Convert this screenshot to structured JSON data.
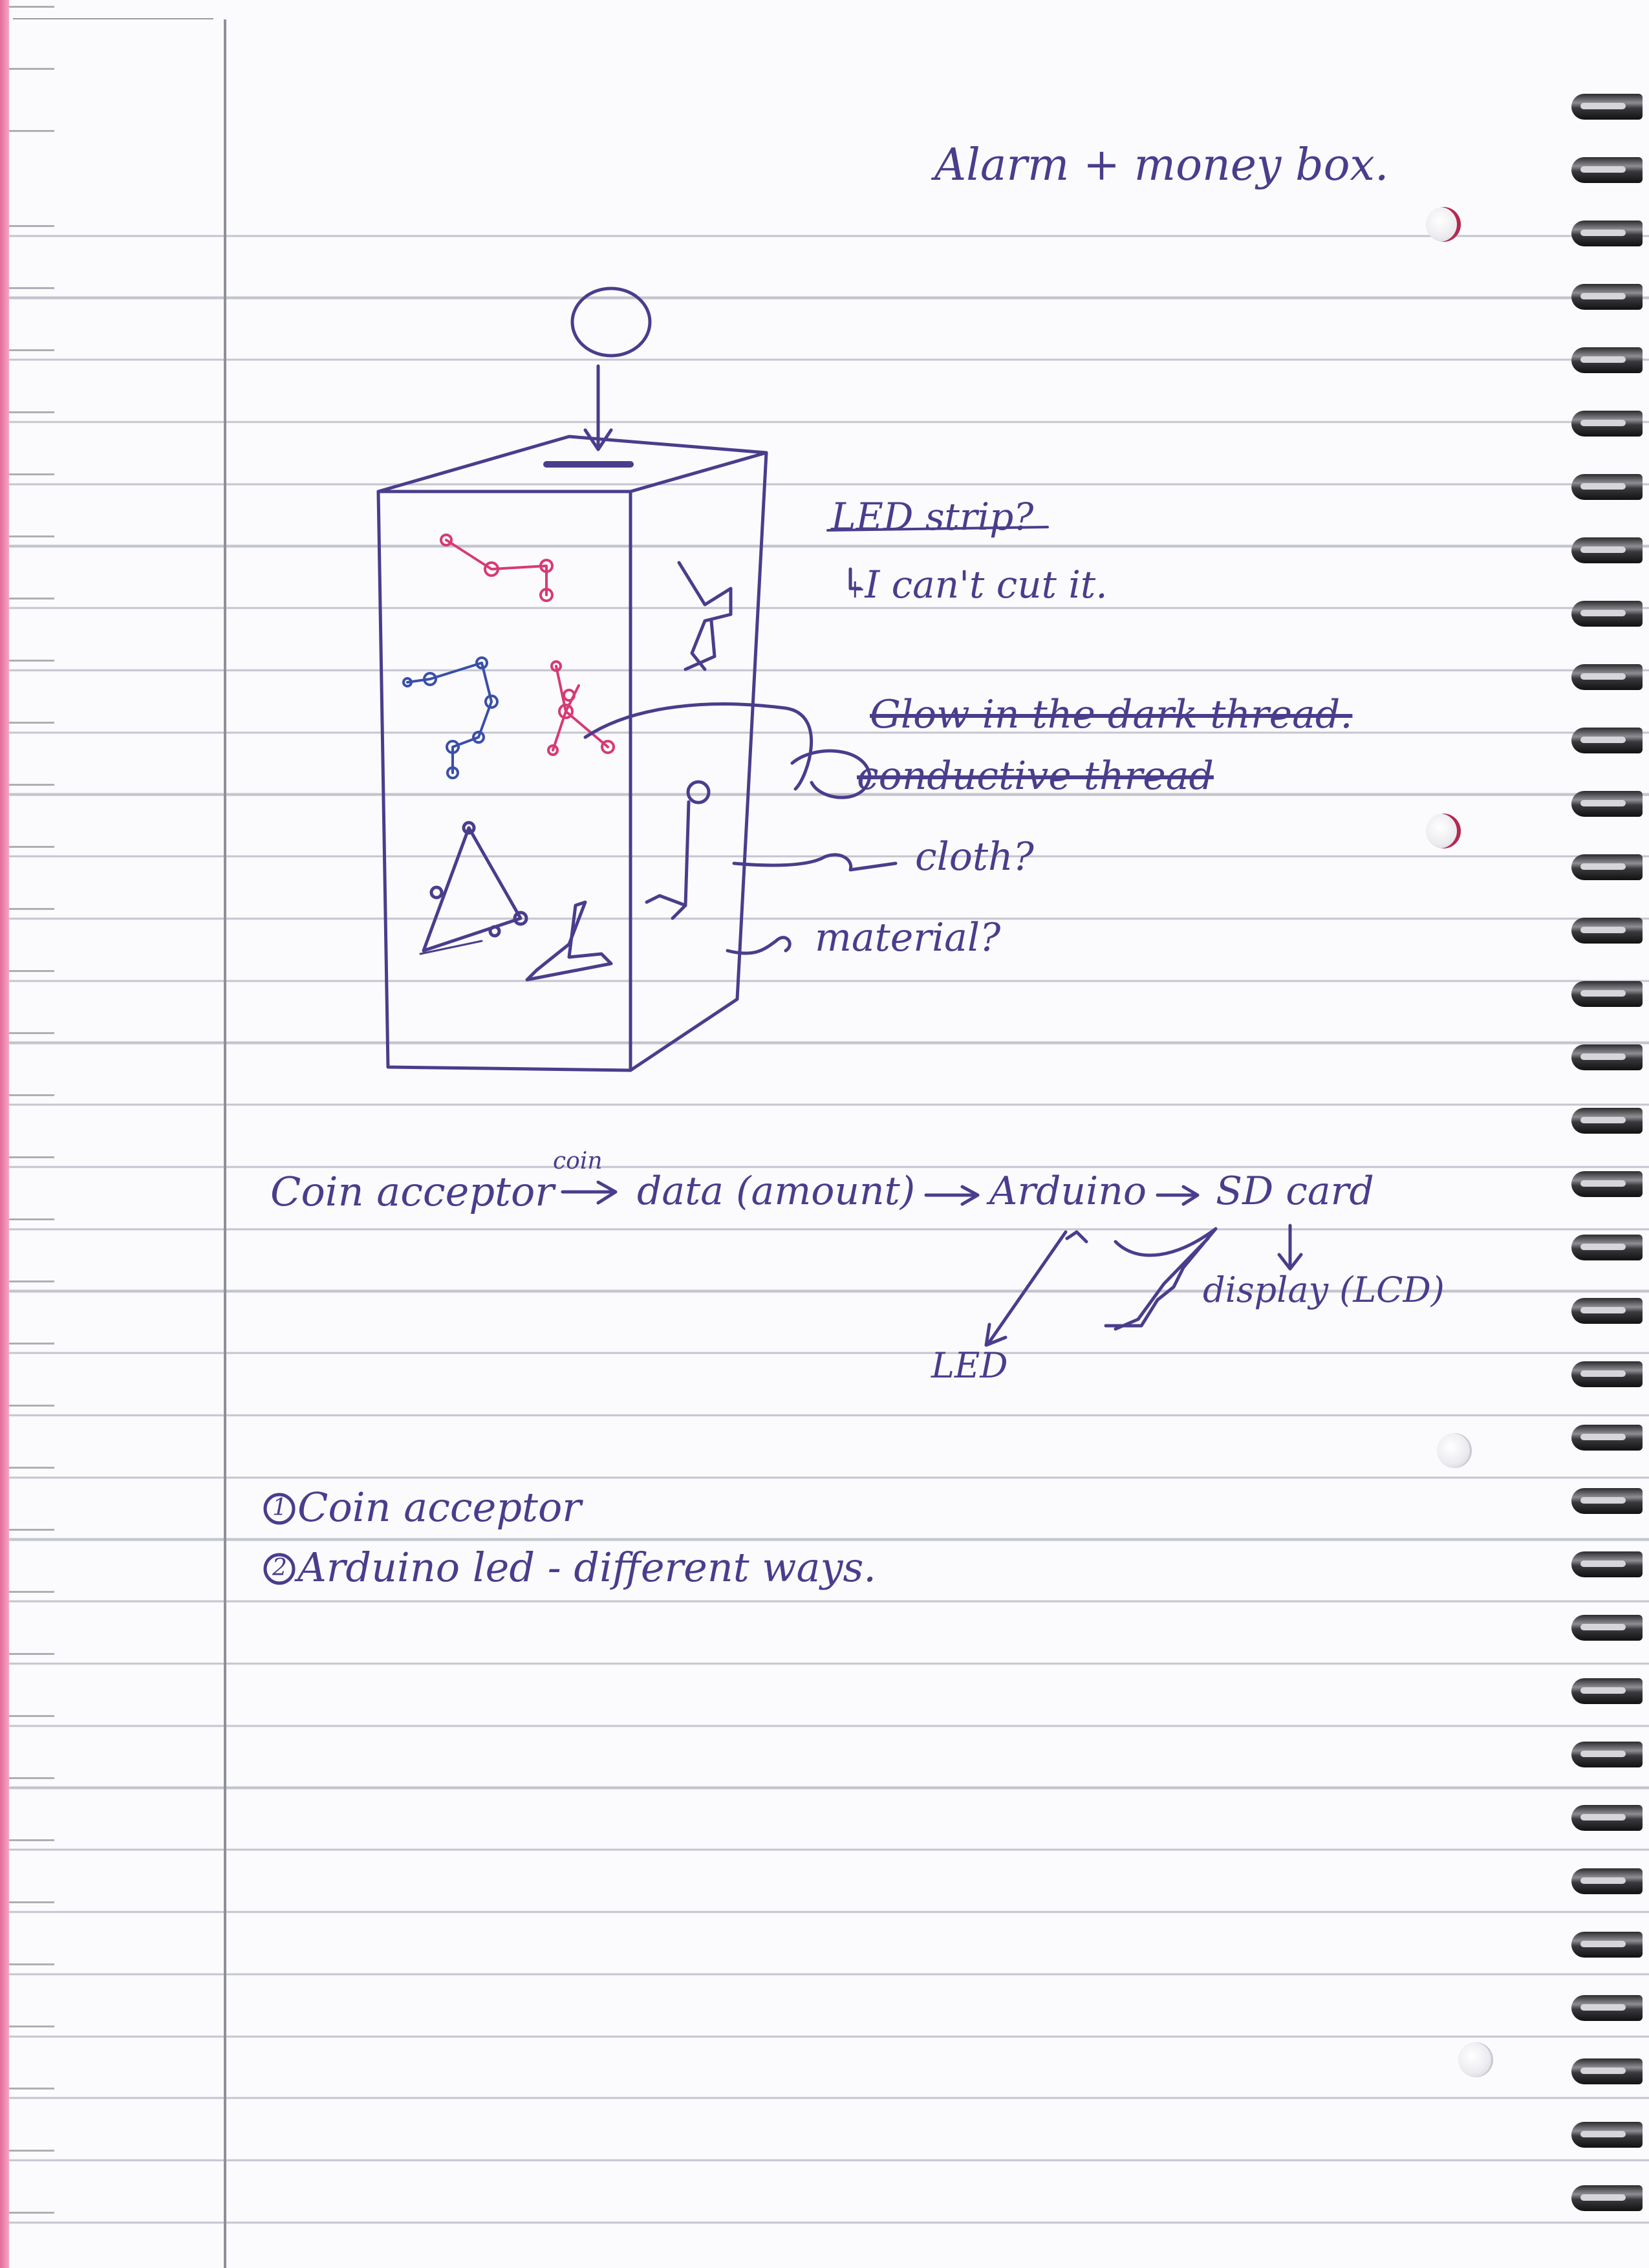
{
  "page": {
    "title": "Alarm + money box.",
    "ink_color": "#4a3d8c",
    "margin_color": "#e46a9a"
  },
  "sketch": {
    "notes": [
      {
        "text": "LED strip?",
        "crossed_out": "LED strip"
      },
      {
        "text": "˫I can't cut it."
      },
      {
        "text": "Glow in the dark thread."
      },
      {
        "text": "conductive thread"
      },
      {
        "text": "cloth?"
      },
      {
        "text": "material?"
      }
    ],
    "star_colors": [
      "#d63a74",
      "#3a4fa8"
    ]
  },
  "flow": {
    "coin_label": "coin",
    "start": "Coin acceptor",
    "data": "data (amount)",
    "controller": "Arduino",
    "storage": "SD card",
    "display": "display (LCD)",
    "led": "LED"
  },
  "tasks": [
    {
      "number": "1",
      "text": "Coin acceptor"
    },
    {
      "number": "2",
      "text": "Arduino led - different ways."
    }
  ]
}
